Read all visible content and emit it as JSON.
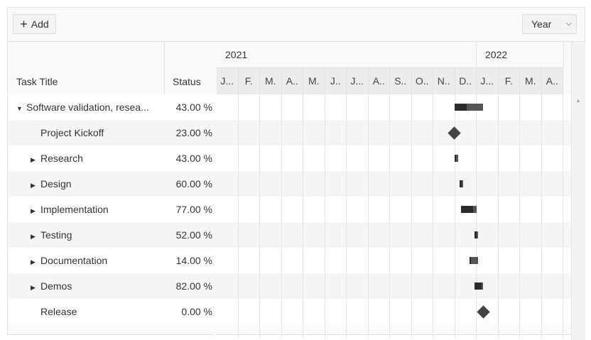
{
  "toolbar": {
    "add_label": "Add",
    "add_icon": "plus-icon",
    "view_value": "Year"
  },
  "columns": {
    "title": "Task Title",
    "status": "Status"
  },
  "timeline": {
    "years": [
      "2021",
      "2022"
    ],
    "months": [
      "J...",
      "F.",
      "M.",
      "A..",
      "M.",
      "J..",
      "J...",
      "A..",
      "S..",
      "O..",
      "N..",
      "D..",
      "J...",
      "F.",
      "M.",
      "A.."
    ],
    "start": "2021-01-01"
  },
  "rows": [
    {
      "title": "Software validation, resea...",
      "status": "43.00 %",
      "level": 0,
      "expander": "expanded",
      "type": "summary",
      "start": "2021-12-01",
      "end": "2022-01-10",
      "progress": 43
    },
    {
      "title": "Project Kickoff",
      "status": "23.00 %",
      "level": 1,
      "expander": "none",
      "type": "milestone",
      "start": "2021-12-01"
    },
    {
      "title": "Research",
      "status": "43.00 %",
      "level": 1,
      "expander": "collapsed",
      "type": "task",
      "start": "2021-12-01",
      "end": "2021-12-06",
      "progress": 43
    },
    {
      "title": "Design",
      "status": "60.00 %",
      "level": 1,
      "expander": "collapsed",
      "type": "task",
      "start": "2021-12-08",
      "end": "2021-12-13",
      "progress": 60
    },
    {
      "title": "Implementation",
      "status": "77.00 %",
      "level": 1,
      "expander": "collapsed",
      "type": "task",
      "start": "2021-12-10",
      "end": "2022-01-01",
      "progress": 77
    },
    {
      "title": "Testing",
      "status": "52.00 %",
      "level": 1,
      "expander": "collapsed",
      "type": "task",
      "start": "2021-12-29",
      "end": "2022-01-03",
      "progress": 52
    },
    {
      "title": "Documentation",
      "status": "14.00 %",
      "level": 1,
      "expander": "collapsed",
      "type": "task",
      "start": "2021-12-22",
      "end": "2022-01-03",
      "progress": 14
    },
    {
      "title": "Demos",
      "status": "82.00 %",
      "level": 1,
      "expander": "collapsed",
      "type": "task",
      "start": "2021-12-29",
      "end": "2022-01-10",
      "progress": 82
    },
    {
      "title": "Release",
      "status": "0.00 %",
      "level": 1,
      "expander": "none",
      "type": "milestone",
      "start": "2022-01-10"
    }
  ]
}
